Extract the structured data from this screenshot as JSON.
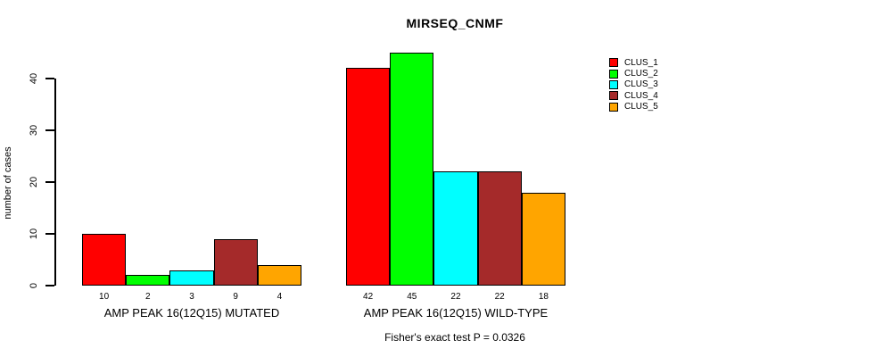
{
  "chart_data": {
    "type": "bar",
    "title": "MIRSEQ_CNMF",
    "ylabel": "number of cases",
    "xlabel": "",
    "ylim": [
      0,
      46
    ],
    "yticks": [
      0,
      10,
      20,
      30,
      40
    ],
    "grid": false,
    "legend_position": "right",
    "categories": [
      "AMP PEAK 16(12Q15) MUTATED",
      "AMP PEAK 16(12Q15) WILD-TYPE"
    ],
    "series": [
      {
        "name": "CLUS_1",
        "color": "#FF0000",
        "values": [
          10,
          42
        ]
      },
      {
        "name": "CLUS_2",
        "color": "#00FF00",
        "values": [
          2,
          45
        ]
      },
      {
        "name": "CLUS_3",
        "color": "#00FFFF",
        "values": [
          3,
          22
        ]
      },
      {
        "name": "CLUS_4",
        "color": "#A52A2A",
        "values": [
          9,
          22
        ]
      },
      {
        "name": "CLUS_5",
        "color": "#FFA500",
        "values": [
          4,
          18
        ]
      }
    ],
    "annotation": "Fisher's exact test P = 0.0326"
  },
  "colors": {
    "background": "#FFFFFF",
    "axis": "#000000",
    "bar_border": "#000000",
    "text": "#000000"
  }
}
